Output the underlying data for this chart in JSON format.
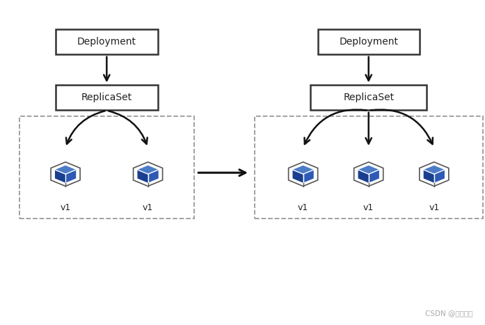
{
  "bg_color": "#ffffff",
  "box_color": "#ffffff",
  "box_edge": "#333333",
  "text_color": "#222222",
  "arrow_color": "#111111",
  "dashed_rect_color": "#999999",
  "cube_face_top": "#4d7cc7",
  "cube_face_left": "#1a3f8f",
  "cube_face_right": "#2e5ab5",
  "cube_outline": "#555555",
  "watermark": "CSDN @管理大亨",
  "left_deploy_label": "Deployment",
  "left_replica_label": "ReplicaSet",
  "right_deploy_label": "Deployment",
  "right_replica_label": "ReplicaSet",
  "pod_label": "v1",
  "figsize": [
    6.97,
    4.67
  ],
  "dpi": 100,
  "xlim": [
    0,
    10
  ],
  "ylim": [
    0,
    7
  ]
}
